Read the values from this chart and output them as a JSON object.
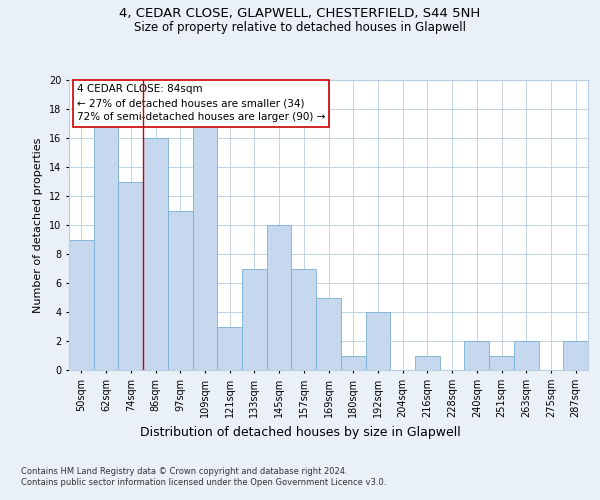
{
  "title_line1": "4, CEDAR CLOSE, GLAPWELL, CHESTERFIELD, S44 5NH",
  "title_line2": "Size of property relative to detached houses in Glapwell",
  "xlabel": "Distribution of detached houses by size in Glapwell",
  "ylabel": "Number of detached properties",
  "categories": [
    "50sqm",
    "62sqm",
    "74sqm",
    "86sqm",
    "97sqm",
    "109sqm",
    "121sqm",
    "133sqm",
    "145sqm",
    "157sqm",
    "169sqm",
    "180sqm",
    "192sqm",
    "204sqm",
    "216sqm",
    "228sqm",
    "240sqm",
    "251sqm",
    "263sqm",
    "275sqm",
    "287sqm"
  ],
  "values": [
    9,
    18,
    13,
    16,
    11,
    17,
    3,
    7,
    10,
    7,
    5,
    1,
    4,
    0,
    1,
    0,
    2,
    1,
    2,
    0,
    2
  ],
  "bar_color": "#c5d8ed",
  "bar_edge_color": "#7bafd4",
  "bar_edge_width": 0.6,
  "ylim": [
    0,
    20
  ],
  "yticks": [
    0,
    2,
    4,
    6,
    8,
    10,
    12,
    14,
    16,
    18,
    20
  ],
  "vline_x_index": 3,
  "vline_color": "#cc0000",
  "annotation_text": "4 CEDAR CLOSE: 84sqm\n← 27% of detached houses are smaller (34)\n72% of semi-detached houses are larger (90) →",
  "annotation_box_color": "#ffffff",
  "annotation_box_edge_color": "#cc0000",
  "footer_text": "Contains HM Land Registry data © Crown copyright and database right 2024.\nContains public sector information licensed under the Open Government Licence v3.0.",
  "bg_color": "#eaf0f8",
  "plot_bg_color": "#ffffff",
  "grid_color": "#b8cde0",
  "title_fontsize": 9.5,
  "subtitle_fontsize": 8.5,
  "tick_fontsize": 7,
  "xlabel_fontsize": 9,
  "ylabel_fontsize": 8,
  "footer_fontsize": 6
}
